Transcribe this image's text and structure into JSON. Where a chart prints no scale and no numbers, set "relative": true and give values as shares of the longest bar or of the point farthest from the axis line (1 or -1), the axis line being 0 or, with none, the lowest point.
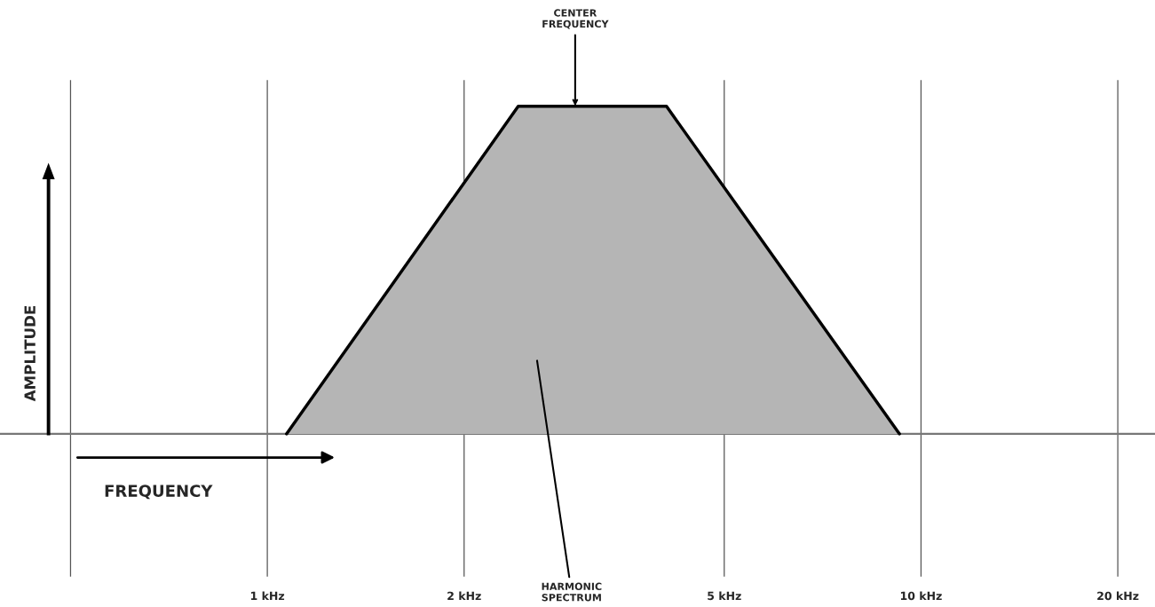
{
  "chart_data": {
    "type": "area",
    "relative": true,
    "xlabel": "FREQUENCY",
    "ylabel": "AMPLITUDE",
    "x": [
      1.07,
      2.42,
      4.08,
      9.27
    ],
    "log": "x",
    "series": [
      {
        "color": "#b5b5b5",
        "values": [
          0,
          1,
          1,
          0
        ]
      }
    ],
    "xlim": [
      0.39,
      22.8
    ],
    "xticks": [
      {
        "value": 0.5,
        "label": null
      },
      {
        "value": 1,
        "label": "1 kHz"
      },
      {
        "value": 2,
        "label": "2 kHz"
      },
      {
        "value": 5,
        "label": "5 kHz"
      },
      {
        "value": 10,
        "label": "10 kHz"
      },
      {
        "value": 20,
        "label": "20 kHz"
      }
    ],
    "grid": "x",
    "tick_labels": "x",
    "annotations": [
      "CENTER\nFREQUENCY",
      "HARMONIC\nSPECTRUM"
    ]
  }
}
